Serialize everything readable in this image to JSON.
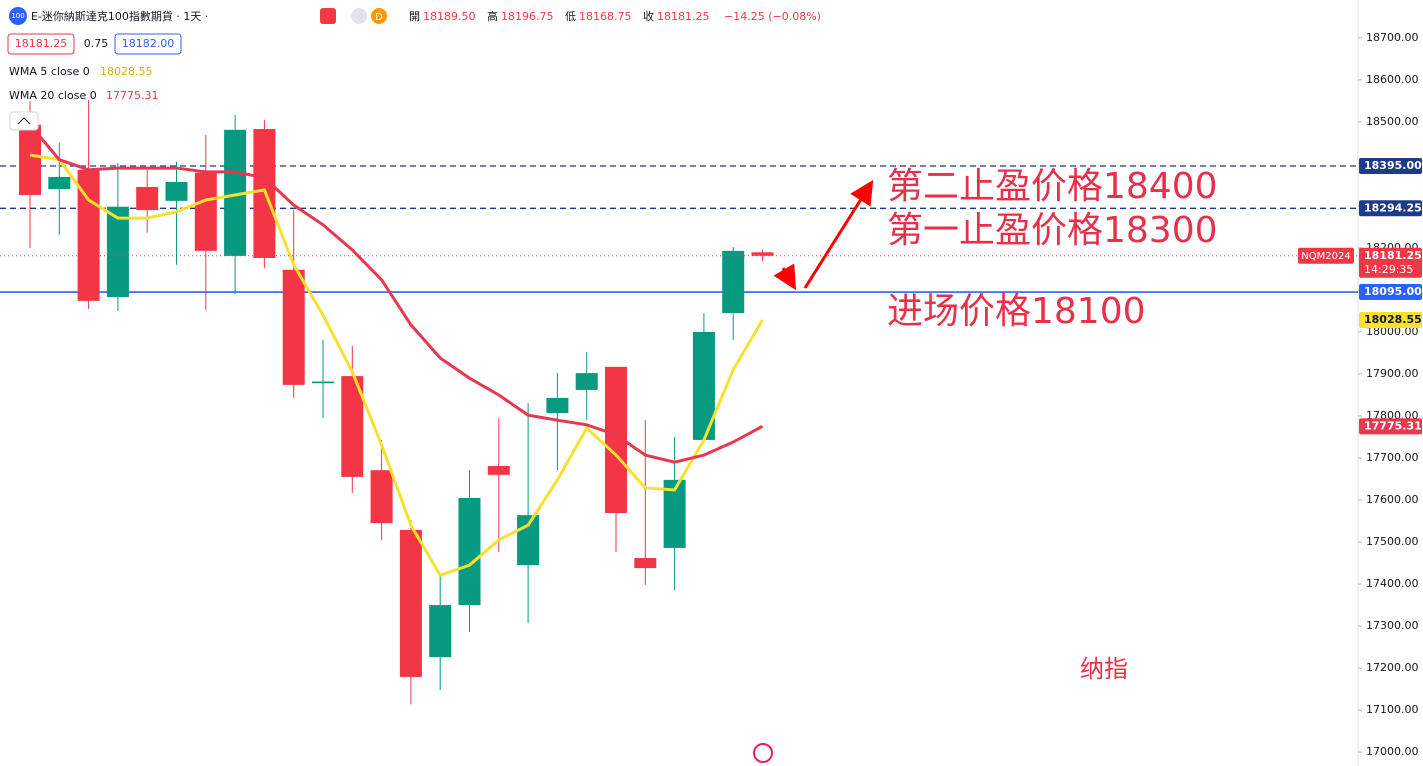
{
  "header": {
    "logo": "100",
    "symbol": "E-迷你納斯達克100指數期貨 · 1天 ·",
    "interval_badge": "D",
    "ohlc": [
      [
        "開",
        "18189.50"
      ],
      [
        "高",
        "18196.75"
      ],
      [
        "低",
        "18168.75"
      ],
      [
        "收",
        "18181.25"
      ]
    ],
    "change": "−14.25 (−0.08%)",
    "bid": "18181.25",
    "spread": "0.75",
    "ask": "18182.00",
    "symbol_code": "NQM2024",
    "countdown": "14:29:35"
  },
  "chart_data": {
    "type": "candlestick",
    "open": [
      18493,
      18340,
      18386,
      18083,
      18345,
      18312,
      18379,
      18181,
      18483,
      18148,
      17878,
      17895,
      17671,
      17529,
      17226,
      17350,
      17681,
      17445,
      17807,
      17862,
      17917,
      17462,
      17486,
      17743,
      18045,
      18189.5
    ],
    "high": [
      18550,
      18450,
      18552,
      18402,
      18386,
      18405,
      18469,
      18517,
      18505,
      18290,
      17981,
      17967,
      17743,
      17552,
      17421,
      17671,
      17795,
      17831,
      17902,
      17952,
      17917,
      17790,
      17750,
      18045,
      18202,
      18196.75
    ],
    "low": [
      18200,
      18231,
      18055,
      18050,
      18236,
      18160,
      18052,
      18090,
      18152,
      17843,
      17795,
      17617,
      17505,
      17114,
      17148,
      17286,
      17476,
      17307,
      17671,
      17790,
      17476,
      17398,
      17386,
      17743,
      17981,
      18168.75
    ],
    "close": [
      18326,
      18369,
      18074,
      18298,
      18290,
      18357,
      18193,
      18481,
      18176,
      17874,
      17882,
      17655,
      17545,
      17179,
      17350,
      17605,
      17660,
      17564,
      17843,
      17902,
      17569,
      17438,
      17648,
      18000,
      18193,
      18181.25
    ],
    "up_color": "#089981",
    "down_color": "#f23645",
    "series": [
      {
        "name": "WMA 5 close 0",
        "color": "#f7e12e",
        "values": [
          18421,
          18410,
          18314,
          18271,
          18271,
          18286,
          18314,
          18326,
          18338,
          18160,
          18040,
          17905,
          17731,
          17540,
          17421,
          17445,
          17505,
          17540,
          17648,
          17771,
          17707,
          17629,
          17624,
          17743,
          17910,
          18028.55
        ]
      },
      {
        "name": "WMA 20 close 0",
        "color": "#e8384f",
        "values": [
          18493,
          18410,
          18386,
          18390,
          18390,
          18390,
          18381,
          18381,
          18367,
          18302,
          18255,
          18195,
          18124,
          18017,
          17938,
          17890,
          17850,
          17802,
          17790,
          17779,
          17755,
          17707,
          17690,
          17707,
          17738,
          17775.31
        ]
      }
    ],
    "hlines": [
      {
        "value": 18395,
        "label": "18395.00",
        "color": "#1e3a8a",
        "style": "dashed"
      },
      {
        "value": 18294.25,
        "label": "18294.25",
        "color": "#1e3a8a",
        "style": "dashed"
      },
      {
        "value": 18095,
        "label": "18095.00",
        "color": "#2962ff",
        "style": "solid"
      }
    ],
    "ylim": [
      16967,
      18790
    ],
    "yticks": [
      {
        "value": 18700,
        "label": "18700.00"
      },
      {
        "value": 18600,
        "label": "18600.00"
      },
      {
        "value": 18500,
        "label": "18500.00"
      },
      {
        "value": 18400,
        "label": "18400.00"
      },
      {
        "value": 18300,
        "label": "18300.00"
      },
      {
        "value": 18200,
        "label": "18200.00"
      },
      {
        "value": 18100,
        "label": "18100.00"
      },
      {
        "value": 18000,
        "label": "18000.00"
      },
      {
        "value": 17900,
        "label": "17900.00"
      },
      {
        "value": 17800,
        "label": "17800.00"
      },
      {
        "value": 17700,
        "label": "17700.00"
      },
      {
        "value": 17600,
        "label": "17600.00"
      },
      {
        "value": 17500,
        "label": "17500.00"
      },
      {
        "value": 17400,
        "label": "17400.00"
      },
      {
        "value": 17300,
        "label": "17300.00"
      },
      {
        "value": 17200,
        "label": "17200.00"
      },
      {
        "value": 17100,
        "label": "17100.00"
      },
      {
        "value": 17000,
        "label": "17000.00"
      }
    ],
    "grid": false,
    "annotations": [
      "第二止盈价格18400",
      "第一止盈价格18300",
      "进场价格18100",
      "纳指"
    ]
  }
}
